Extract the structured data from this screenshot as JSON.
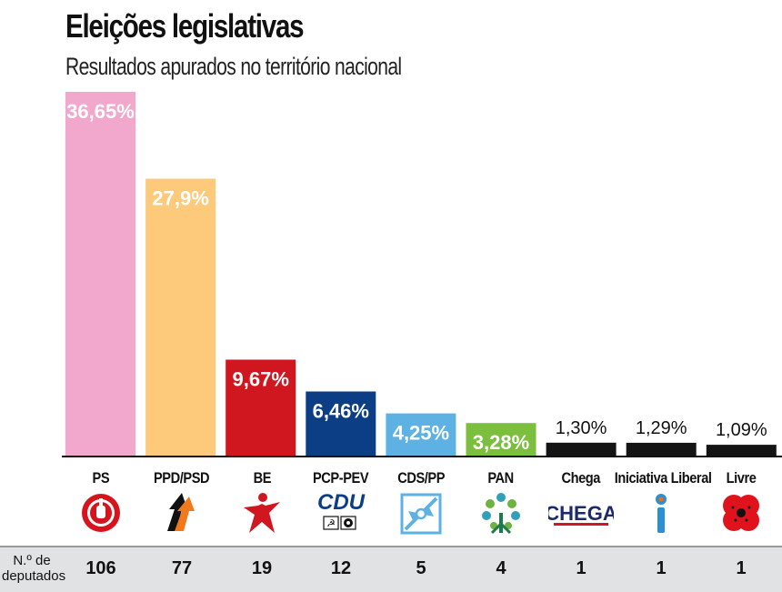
{
  "header": {
    "title": "Eleições legislativas",
    "subtitle": "Resultados apurados no território nacional"
  },
  "chart_data": {
    "type": "bar",
    "title": "Eleições legislativas",
    "subtitle": "Resultados apurados no território nacional",
    "categories": [
      "PS",
      "PPD/PSD",
      "BE",
      "PCP-PEV",
      "CDS/PP",
      "PAN",
      "Chega",
      "Iniciativa Liberal",
      "Livre"
    ],
    "values": [
      36.65,
      27.9,
      9.67,
      6.46,
      4.25,
      3.28,
      1.3,
      1.29,
      1.09
    ],
    "value_labels": [
      "36,65%",
      "27,9%",
      "9,67%",
      "6,46%",
      "4,25%",
      "3,28%",
      "1,30%",
      "1,29%",
      "1,09%"
    ],
    "colors": [
      "#f2a7cc",
      "#fcca7a",
      "#d0161f",
      "#0b3e84",
      "#5db2e3",
      "#7cbe3d",
      "#141414",
      "#141414",
      "#141414"
    ],
    "ylim": [
      0,
      36.65
    ],
    "xlabel": "",
    "ylabel": "",
    "grid": false,
    "legend": "none"
  },
  "logos": {
    "cdu_text": "CDU",
    "chega_text": "CHEGA"
  },
  "seats": {
    "label_line1": "N.º de",
    "label_line2": "deputados",
    "values": [
      "106",
      "77",
      "19",
      "12",
      "5",
      "4",
      "1",
      "1",
      "1"
    ]
  }
}
